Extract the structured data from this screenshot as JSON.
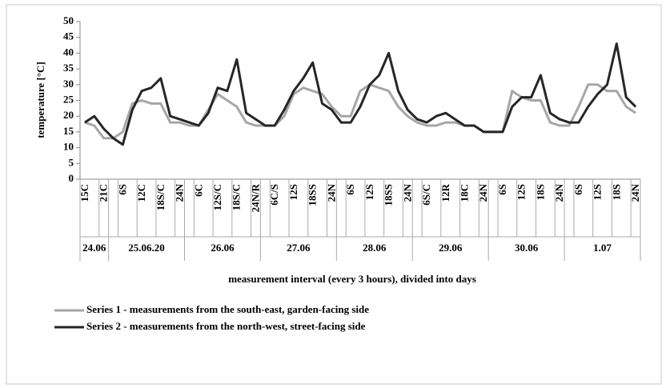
{
  "chart_data": {
    "type": "line",
    "y_label": "temperature [°C]",
    "x_label": "measurement interval  (every 3 hours), divided into days",
    "categories": [
      "15C",
      null,
      "21C",
      null,
      "6S",
      null,
      "12C",
      null,
      "18S/C",
      null,
      "24N",
      null,
      "6C",
      null,
      "12S/C",
      null,
      "18S/C",
      null,
      "24N/R",
      null,
      "6C/S",
      null,
      "12S",
      null,
      "18SS",
      null,
      "24N",
      null,
      "6S",
      null,
      "12S",
      null,
      "18SS",
      null,
      "24N",
      null,
      "6S/C",
      null,
      "12R",
      null,
      "18C",
      null,
      "24N",
      null,
      "6S",
      null,
      "12S",
      null,
      "18S",
      null,
      "24N",
      null,
      "6S",
      null,
      "12S",
      null,
      "18S",
      null,
      "24N"
    ],
    "groups": [
      {
        "label": "24.06",
        "count": 3
      },
      {
        "label": "25.06.20",
        "count": 8
      },
      {
        "label": "26.06",
        "count": 8
      },
      {
        "label": "27.06",
        "count": 8
      },
      {
        "label": "28.06",
        "count": 8
      },
      {
        "label": "29.06",
        "count": 8
      },
      {
        "label": "30.06",
        "count": 8
      },
      {
        "label": "1.07",
        "count": 8
      }
    ],
    "series": [
      {
        "name": "Series 1 - measurements from the south-east, garden-facing side",
        "color": "#a6a6a6",
        "values": [
          18,
          17,
          13,
          13,
          15,
          24,
          25,
          24,
          24,
          18,
          18,
          17,
          17,
          22,
          27,
          25,
          23,
          18,
          17,
          17,
          17,
          20,
          27,
          29,
          28,
          27,
          23,
          20,
          20,
          28,
          30,
          29,
          28,
          23,
          20,
          18,
          17,
          17,
          18,
          18,
          17,
          17,
          15,
          15,
          15,
          28,
          26,
          25,
          25,
          18,
          17,
          17,
          23,
          30,
          30,
          28,
          28,
          23,
          21
        ]
      },
      {
        "name": "Series 2 - measurements from the north-west, street-facing side",
        "color": "#262626",
        "values": [
          18,
          20,
          16,
          13,
          11,
          22,
          28,
          29,
          32,
          20,
          19,
          18,
          17,
          21,
          29,
          28,
          38,
          21,
          19,
          17,
          17,
          22,
          28,
          32,
          37,
          24,
          22,
          18,
          18,
          23,
          30,
          33,
          40,
          28,
          22,
          19,
          18,
          20,
          21,
          19,
          17,
          17,
          15,
          15,
          15,
          23,
          26,
          26,
          33,
          21,
          19,
          18,
          18,
          23,
          27,
          30,
          43,
          26,
          23
        ]
      }
    ],
    "ylim": [
      0,
      50
    ],
    "yticks": [
      0,
      5,
      10,
      15,
      20,
      25,
      30,
      35,
      40,
      45,
      50
    ],
    "grid": false
  }
}
